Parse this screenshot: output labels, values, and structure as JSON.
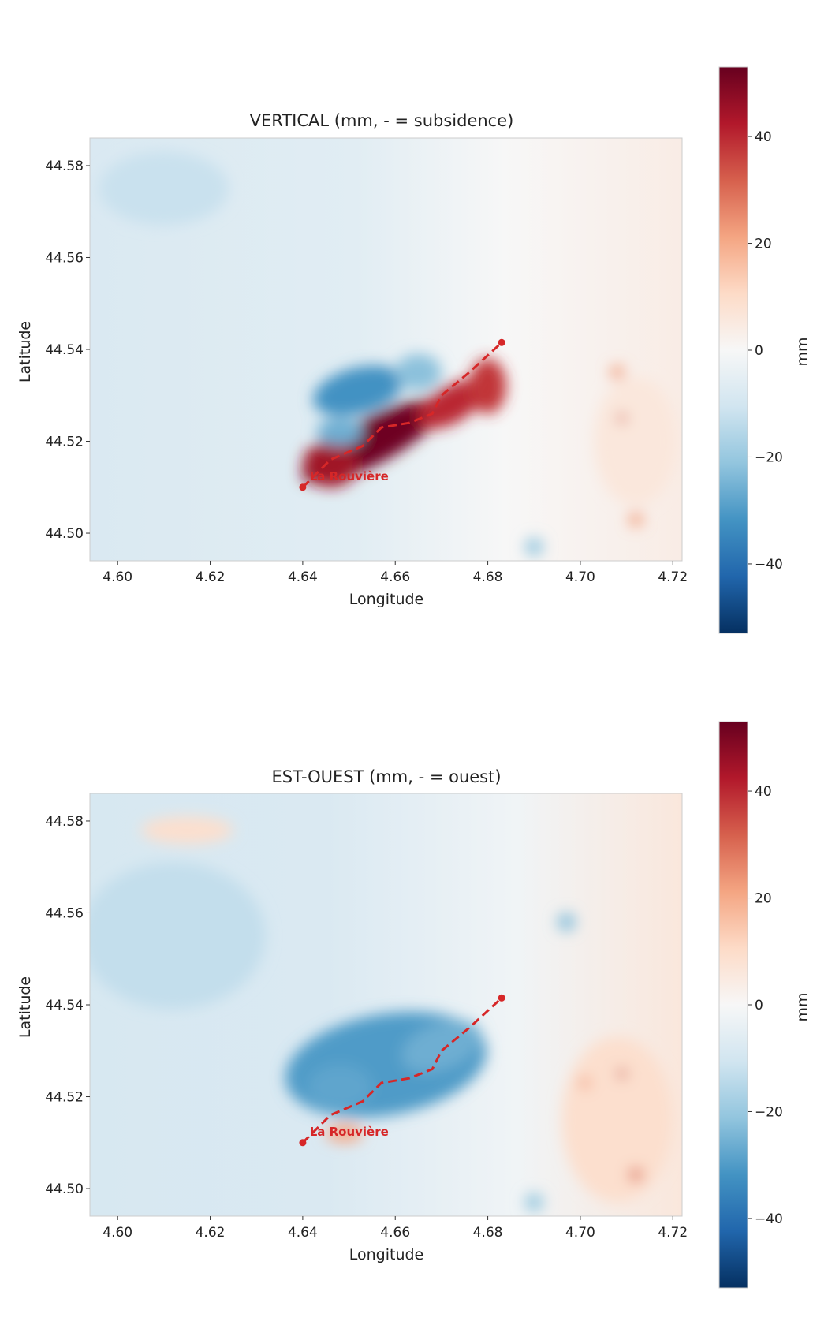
{
  "colorbar": {
    "label": "mm",
    "range": [
      -53,
      53
    ],
    "ticks": [
      40,
      20,
      0,
      -20,
      -40
    ],
    "tick_labels": [
      "40",
      "20",
      "0",
      "−20",
      "−40"
    ],
    "colormap": [
      "#053061",
      "#2166ac",
      "#4393c3",
      "#92c5de",
      "#d1e5f0",
      "#f7f7f7",
      "#fddbc7",
      "#f4a582",
      "#d6604d",
      "#b2182b",
      "#67001f"
    ]
  },
  "chart_data": [
    {
      "type": "heatmap",
      "title": "VERTICAL (mm, - = subsidence)",
      "xlabel": "Longitude",
      "ylabel": "Latitude",
      "xlim": [
        4.594,
        4.722
      ],
      "ylim": [
        44.494,
        44.586
      ],
      "xticks": [
        4.6,
        4.62,
        4.64,
        4.66,
        4.68,
        4.7,
        4.72
      ],
      "xtick_labels": [
        "4.60",
        "4.62",
        "4.64",
        "4.66",
        "4.68",
        "4.70",
        "4.72"
      ],
      "yticks": [
        44.5,
        44.52,
        44.54,
        44.56,
        44.58
      ],
      "ytick_labels": [
        "44.50",
        "44.52",
        "44.54",
        "44.56",
        "44.58"
      ],
      "grid": false,
      "annotation": {
        "text": "La Rouvière",
        "x": 4.6415,
        "y": 44.5115
      },
      "trace": [
        [
          4.64,
          44.51
        ],
        [
          4.646,
          44.516
        ],
        [
          4.653,
          44.519
        ],
        [
          4.657,
          44.523
        ],
        [
          4.663,
          44.524
        ],
        [
          4.668,
          44.526
        ],
        [
          4.67,
          44.53
        ],
        [
          4.676,
          44.535
        ],
        [
          4.683,
          44.5415
        ]
      ],
      "anomalies": [
        {
          "x": 4.655,
          "y": 44.52,
          "sx": 0.017,
          "sy": 0.005,
          "rot": 28,
          "value": 52
        },
        {
          "x": 4.646,
          "y": 44.515,
          "sx": 0.006,
          "sy": 0.005,
          "rot": 0,
          "value": 45
        },
        {
          "x": 4.672,
          "y": 44.528,
          "sx": 0.008,
          "sy": 0.004,
          "rot": 30,
          "value": 40
        },
        {
          "x": 4.68,
          "y": 44.532,
          "sx": 0.004,
          "sy": 0.006,
          "rot": 0,
          "value": 38
        },
        {
          "x": 4.652,
          "y": 44.531,
          "sx": 0.01,
          "sy": 0.005,
          "rot": 15,
          "value": -32
        },
        {
          "x": 4.648,
          "y": 44.522,
          "sx": 0.005,
          "sy": 0.003,
          "rot": 0,
          "value": -26
        },
        {
          "x": 4.665,
          "y": 44.535,
          "sx": 0.005,
          "sy": 0.004,
          "rot": 0,
          "value": -22
        },
        {
          "x": 4.61,
          "y": 44.575,
          "sx": 0.014,
          "sy": 0.008,
          "rot": 0,
          "value": -12
        },
        {
          "x": 4.712,
          "y": 44.52,
          "sx": 0.009,
          "sy": 0.014,
          "rot": 0,
          "value": 6
        },
        {
          "x": 4.709,
          "y": 44.525,
          "sx": 0.001,
          "sy": 0.001,
          "rot": 0,
          "value": 30
        },
        {
          "x": 4.708,
          "y": 44.535,
          "sx": 0.0015,
          "sy": 0.0015,
          "rot": 0,
          "value": 22
        },
        {
          "x": 4.712,
          "y": 44.503,
          "sx": 0.0015,
          "sy": 0.0015,
          "rot": 0,
          "value": 22
        },
        {
          "x": 4.69,
          "y": 44.497,
          "sx": 0.002,
          "sy": 0.002,
          "rot": 0,
          "value": -20
        }
      ]
    },
    {
      "type": "heatmap",
      "title": "EST-OUEST (mm, - = ouest)",
      "xlabel": "Longitude",
      "ylabel": "Latitude",
      "xlim": [
        4.594,
        4.722
      ],
      "ylim": [
        44.494,
        44.586
      ],
      "xticks": [
        4.6,
        4.62,
        4.64,
        4.66,
        4.68,
        4.7,
        4.72
      ],
      "xtick_labels": [
        "4.60",
        "4.62",
        "4.64",
        "4.66",
        "4.68",
        "4.70",
        "4.72"
      ],
      "yticks": [
        44.5,
        44.52,
        44.54,
        44.56,
        44.58
      ],
      "ytick_labels": [
        "44.50",
        "44.52",
        "44.54",
        "44.56",
        "44.58"
      ],
      "grid": false,
      "annotation": {
        "text": "La Rouvière",
        "x": 4.6415,
        "y": 44.5115
      },
      "trace": [
        [
          4.64,
          44.51
        ],
        [
          4.646,
          44.516
        ],
        [
          4.653,
          44.519
        ],
        [
          4.657,
          44.523
        ],
        [
          4.663,
          44.524
        ],
        [
          4.668,
          44.526
        ],
        [
          4.67,
          44.53
        ],
        [
          4.676,
          44.535
        ],
        [
          4.683,
          44.5415
        ]
      ],
      "anomalies": [
        {
          "x": 4.658,
          "y": 44.527,
          "sx": 0.022,
          "sy": 0.011,
          "rot": 10,
          "value": -30
        },
        {
          "x": 4.648,
          "y": 44.522,
          "sx": 0.007,
          "sy": 0.005,
          "rot": 0,
          "value": -28
        },
        {
          "x": 4.67,
          "y": 44.531,
          "sx": 0.009,
          "sy": 0.005,
          "rot": 20,
          "value": -26
        },
        {
          "x": 4.612,
          "y": 44.555,
          "sx": 0.02,
          "sy": 0.016,
          "rot": 0,
          "value": -13
        },
        {
          "x": 4.615,
          "y": 44.578,
          "sx": 0.01,
          "sy": 0.003,
          "rot": 0,
          "value": 9
        },
        {
          "x": 4.649,
          "y": 44.512,
          "sx": 0.004,
          "sy": 0.002,
          "rot": 0,
          "value": 20
        },
        {
          "x": 4.708,
          "y": 44.515,
          "sx": 0.012,
          "sy": 0.018,
          "rot": 0,
          "value": 9
        },
        {
          "x": 4.709,
          "y": 44.525,
          "sx": 0.001,
          "sy": 0.001,
          "rot": 0,
          "value": 34
        },
        {
          "x": 4.712,
          "y": 44.503,
          "sx": 0.0015,
          "sy": 0.0015,
          "rot": 0,
          "value": 28
        },
        {
          "x": 4.701,
          "y": 44.523,
          "sx": 0.0012,
          "sy": 0.0012,
          "rot": 0,
          "value": 22
        },
        {
          "x": 4.697,
          "y": 44.558,
          "sx": 0.002,
          "sy": 0.002,
          "rot": 0,
          "value": -22
        },
        {
          "x": 4.69,
          "y": 44.497,
          "sx": 0.002,
          "sy": 0.002,
          "rot": 0,
          "value": -20
        }
      ]
    }
  ]
}
